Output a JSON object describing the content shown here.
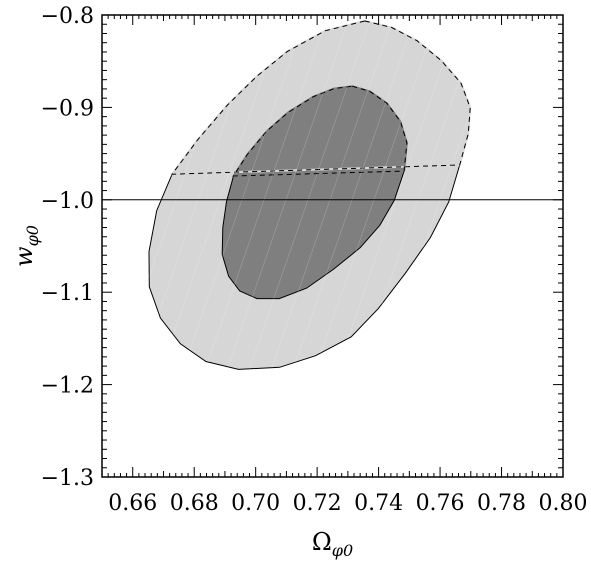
{
  "chart_data": {
    "type": "contour",
    "xlabel": "Ω",
    "xlabel_sub": "φ0",
    "ylabel": "w",
    "ylabel_sub": "φ0",
    "xlim": [
      0.65,
      0.8
    ],
    "ylim": [
      -1.3,
      -0.8
    ],
    "x_ticks": [
      0.66,
      0.68,
      0.7,
      0.72,
      0.74,
      0.76,
      0.78,
      0.8
    ],
    "x_tick_labels": [
      "0.66",
      "0.68",
      "0.70",
      "0.72",
      "0.74",
      "0.76",
      "0.78",
      "0.80"
    ],
    "y_ticks": [
      -0.8,
      -0.9,
      -1.0,
      -1.1,
      -1.2,
      -1.3
    ],
    "y_tick_labels": [
      "−0.8",
      "−0.9",
      "−1.0",
      "−1.1",
      "−1.2",
      "−1.3"
    ],
    "reference_line": {
      "y": -1.0
    },
    "regions": [
      {
        "level": "outer",
        "color": "#d6d6d6",
        "points": [
          [
            0.7355,
            -0.8065
          ],
          [
            0.7442,
            -0.8134
          ],
          [
            0.7525,
            -0.8278
          ],
          [
            0.7604,
            -0.8494
          ],
          [
            0.7668,
            -0.8738
          ],
          [
            0.7698,
            -0.9003
          ],
          [
            0.7692,
            -0.9282
          ],
          [
            0.7664,
            -0.9623
          ],
          [
            0.7628,
            -1.0024
          ],
          [
            0.7569,
            -1.0407
          ],
          [
            0.7487,
            -1.0795
          ],
          [
            0.7399,
            -1.1177
          ],
          [
            0.7311,
            -1.1483
          ],
          [
            0.7195,
            -1.1687
          ],
          [
            0.7078,
            -1.1813
          ],
          [
            0.6944,
            -1.1836
          ],
          [
            0.6838,
            -1.175
          ],
          [
            0.6755,
            -1.1558
          ],
          [
            0.669,
            -1.1279
          ],
          [
            0.6654,
            -1.0942
          ],
          [
            0.6653,
            -1.0559
          ],
          [
            0.6678,
            -1.0117
          ],
          [
            0.6728,
            -0.9723
          ],
          [
            0.6812,
            -0.9347
          ],
          [
            0.6908,
            -0.8975
          ],
          [
            0.7004,
            -0.8662
          ],
          [
            0.7103,
            -0.8395
          ],
          [
            0.7226,
            -0.8171
          ],
          [
            0.7355,
            -0.8065
          ]
        ]
      },
      {
        "level": "inner",
        "color": "#7f7f7f",
        "points": [
          [
            0.7314,
            -0.8771
          ],
          [
            0.7371,
            -0.8826
          ],
          [
            0.7427,
            -0.8956
          ],
          [
            0.7471,
            -0.9151
          ],
          [
            0.7492,
            -0.9383
          ],
          [
            0.7483,
            -0.9689
          ],
          [
            0.7451,
            -1.0005
          ],
          [
            0.7404,
            -1.0276
          ],
          [
            0.734,
            -1.0518
          ],
          [
            0.7255,
            -1.0748
          ],
          [
            0.7166,
            -1.0956
          ],
          [
            0.7077,
            -1.1069
          ],
          [
            0.7004,
            -1.1069
          ],
          [
            0.6948,
            -1.0987
          ],
          [
            0.6912,
            -1.0827
          ],
          [
            0.6891,
            -1.0591
          ],
          [
            0.6893,
            -1.0299
          ],
          [
            0.6905,
            -1.002
          ],
          [
            0.6928,
            -0.9742
          ],
          [
            0.6973,
            -0.9509
          ],
          [
            0.7036,
            -0.9258
          ],
          [
            0.7106,
            -0.9053
          ],
          [
            0.7188,
            -0.8884
          ],
          [
            0.7255,
            -0.8796
          ],
          [
            0.7314,
            -0.8771
          ]
        ]
      }
    ]
  }
}
